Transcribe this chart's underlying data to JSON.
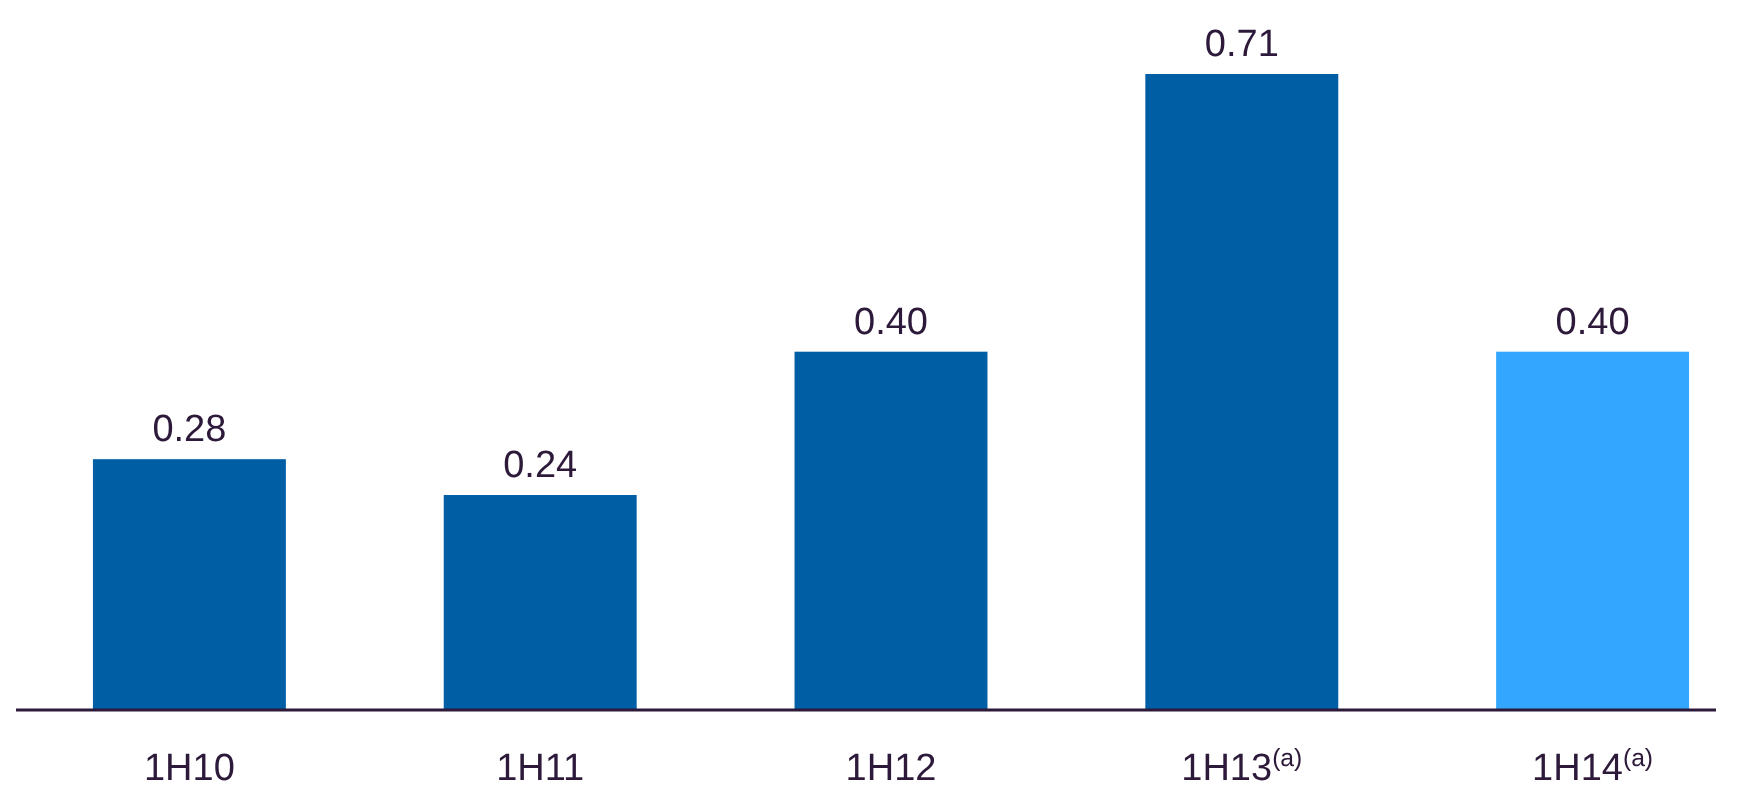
{
  "chart_data": {
    "type": "bar",
    "categories": [
      "1H10",
      "1H11",
      "1H12",
      "1H13$^{(a)}$",
      "1H14$^{(a)}$"
    ],
    "values": [
      0.28,
      0.24,
      0.4,
      0.71,
      0.4
    ],
    "colors": [
      "#005ea5",
      "#005ea5",
      "#005ea5",
      "#005ea5",
      "#33a7ff"
    ],
    "value_labels": [
      "0.28",
      "0.24",
      "0.40",
      "0.71",
      "0.40"
    ]
  }
}
